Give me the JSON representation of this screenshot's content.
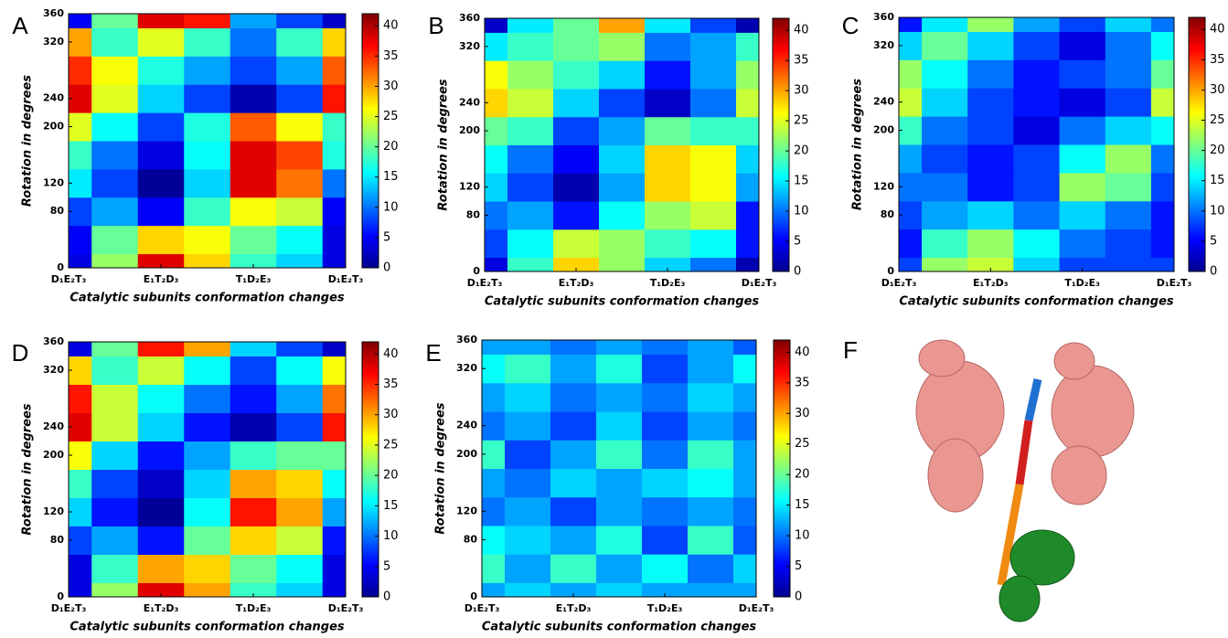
{
  "chart_data": [
    {
      "type": "contour",
      "label": "A",
      "xlabel": "Catalytic subunits conformation changes",
      "ylabel": "Rotation in degrees",
      "xticks": [
        {
          "value": 0,
          "label": "D₁E₂T₃"
        },
        {
          "value": 1,
          "label": "E₁T₂D₃"
        },
        {
          "value": 2,
          "label": "T₁D₂E₃"
        },
        {
          "value": 3,
          "label": "D₁E₂T₃"
        }
      ],
      "xlim": [
        0,
        3
      ],
      "ylim": [
        0,
        360
      ],
      "yticks": [
        0,
        80,
        120,
        200,
        240,
        320,
        360
      ],
      "zlim": [
        0,
        42
      ],
      "zticks": [
        0,
        5,
        10,
        15,
        20,
        25,
        30,
        35,
        40
      ],
      "x": [
        0,
        0.5,
        1,
        1.5,
        2,
        2.5,
        3
      ],
      "y": [
        0,
        40,
        80,
        120,
        160,
        200,
        240,
        280,
        320,
        360
      ],
      "z": [
        [
          4,
          22,
          38,
          28,
          18,
          14,
          4
        ],
        [
          5,
          20,
          28,
          26,
          20,
          16,
          4
        ],
        [
          8,
          12,
          5,
          18,
          26,
          24,
          5
        ],
        [
          15,
          8,
          1,
          14,
          38,
          32,
          10
        ],
        [
          18,
          10,
          4,
          16,
          38,
          34,
          17
        ],
        [
          25,
          16,
          8,
          17,
          33,
          26,
          18
        ],
        [
          38,
          25,
          14,
          8,
          2,
          8,
          36
        ],
        [
          35,
          26,
          17,
          12,
          8,
          12,
          33
        ],
        [
          30,
          18,
          25,
          18,
          10,
          18,
          28
        ],
        [
          5,
          20,
          38,
          36,
          12,
          8,
          3
        ]
      ]
    },
    {
      "type": "contour",
      "label": "B",
      "xlabel": "Catalytic subunits conformation changes",
      "ylabel": "Rotation in degrees",
      "xticks": [
        {
          "value": 0,
          "label": "D₁E₂T₃"
        },
        {
          "value": 1,
          "label": "E₁T₂D₃"
        },
        {
          "value": 2,
          "label": "T₁D₂E₃"
        },
        {
          "value": 3,
          "label": "D₁E₂T₃"
        }
      ],
      "xlim": [
        0,
        3
      ],
      "ylim": [
        0,
        360
      ],
      "yticks": [
        0,
        80,
        120,
        200,
        240,
        320,
        360
      ],
      "zlim": [
        0,
        42
      ],
      "zticks": [
        0,
        5,
        10,
        15,
        20,
        25,
        30,
        35,
        40
      ],
      "x": [
        0,
        0.5,
        1,
        1.5,
        2,
        2.5,
        3
      ],
      "y": [
        0,
        40,
        80,
        120,
        160,
        200,
        240,
        280,
        320,
        360
      ],
      "z": [
        [
          4,
          18,
          28,
          22,
          14,
          10,
          2
        ],
        [
          8,
          16,
          24,
          22,
          18,
          16,
          6
        ],
        [
          10,
          12,
          6,
          16,
          22,
          24,
          6
        ],
        [
          14,
          8,
          2,
          12,
          28,
          26,
          12
        ],
        [
          16,
          10,
          5,
          14,
          28,
          26,
          14
        ],
        [
          20,
          18,
          8,
          12,
          20,
          18,
          18
        ],
        [
          28,
          24,
          14,
          8,
          3,
          10,
          24
        ],
        [
          26,
          22,
          18,
          14,
          6,
          12,
          22
        ],
        [
          15,
          18,
          20,
          22,
          10,
          12,
          18
        ],
        [
          3,
          15,
          20,
          30,
          15,
          8,
          2
        ]
      ]
    },
    {
      "type": "contour",
      "label": "C",
      "xlabel": "Catalytic subunits conformation changes",
      "ylabel": "Rotation in degrees",
      "xticks": [
        {
          "value": 0,
          "label": "D₁E₂T₃"
        },
        {
          "value": 1,
          "label": "E₁T₂D₃"
        },
        {
          "value": 2,
          "label": "T₁D₂E₃"
        },
        {
          "value": 3,
          "label": "D₁E₂T₃"
        }
      ],
      "xlim": [
        0,
        3
      ],
      "ylim": [
        0,
        360
      ],
      "yticks": [
        0,
        80,
        120,
        200,
        240,
        320,
        360
      ],
      "zlim": [
        0,
        42
      ],
      "zticks": [
        0,
        5,
        10,
        15,
        20,
        25,
        30,
        35,
        40
      ],
      "x": [
        0,
        0.5,
        1,
        1.5,
        2,
        2.5,
        3
      ],
      "y": [
        0,
        40,
        80,
        120,
        160,
        200,
        240,
        280,
        320,
        360
      ],
      "z": [
        [
          8,
          22,
          24,
          14,
          8,
          8,
          8
        ],
        [
          6,
          18,
          22,
          16,
          10,
          8,
          6
        ],
        [
          8,
          12,
          14,
          10,
          14,
          10,
          6
        ],
        [
          10,
          10,
          6,
          8,
          22,
          20,
          8
        ],
        [
          12,
          8,
          6,
          8,
          16,
          22,
          10
        ],
        [
          18,
          10,
          8,
          4,
          10,
          14,
          16
        ],
        [
          24,
          14,
          8,
          6,
          4,
          8,
          24
        ],
        [
          22,
          16,
          10,
          6,
          8,
          10,
          20
        ],
        [
          14,
          20,
          14,
          8,
          4,
          10,
          16
        ],
        [
          6,
          15,
          22,
          12,
          8,
          14,
          10
        ]
      ]
    },
    {
      "type": "contour",
      "label": "D",
      "xlabel": "Catalytic subunits conformation changes",
      "ylabel": "Rotation in degrees",
      "xticks": [
        {
          "value": 0,
          "label": "D₁E₂T₃"
        },
        {
          "value": 1,
          "label": "E₁T₂D₃"
        },
        {
          "value": 2,
          "label": "T₁D₂E₃"
        },
        {
          "value": 3,
          "label": "D₁E₂T₃"
        }
      ],
      "xlim": [
        0,
        3
      ],
      "ylim": [
        0,
        360
      ],
      "yticks": [
        0,
        80,
        120,
        200,
        240,
        320,
        360
      ],
      "zlim": [
        0,
        42
      ],
      "zticks": [
        0,
        5,
        10,
        15,
        20,
        25,
        30,
        35,
        40
      ],
      "x": [
        0,
        0.5,
        1,
        1.5,
        2,
        2.5,
        3
      ],
      "y": [
        0,
        40,
        80,
        120,
        160,
        200,
        240,
        280,
        320,
        360
      ],
      "z": [
        [
          4,
          22,
          38,
          30,
          18,
          14,
          4
        ],
        [
          4,
          18,
          30,
          28,
          20,
          16,
          4
        ],
        [
          8,
          12,
          6,
          20,
          28,
          24,
          6
        ],
        [
          14,
          6,
          1,
          16,
          36,
          30,
          12
        ],
        [
          18,
          8,
          3,
          14,
          30,
          28,
          16
        ],
        [
          26,
          14,
          6,
          12,
          18,
          20,
          20
        ],
        [
          38,
          24,
          14,
          6,
          2,
          8,
          36
        ],
        [
          36,
          24,
          16,
          10,
          6,
          12,
          32
        ],
        [
          28,
          18,
          24,
          16,
          8,
          16,
          26
        ],
        [
          4,
          20,
          36,
          30,
          14,
          8,
          3
        ]
      ]
    },
    {
      "type": "contour",
      "label": "E",
      "xlabel": "Catalytic subunits conformation changes",
      "ylabel": "Rotation in degrees",
      "xticks": [
        {
          "value": 0,
          "label": "D₁E₂T₃"
        },
        {
          "value": 1,
          "label": "E₁T₂D₃"
        },
        {
          "value": 2,
          "label": "T₁D₂E₃"
        },
        {
          "value": 3,
          "label": "D₁E₂T₃"
        }
      ],
      "xlim": [
        0,
        3
      ],
      "ylim": [
        0,
        360
      ],
      "yticks": [
        0,
        80,
        120,
        200,
        240,
        320,
        360
      ],
      "zlim": [
        0,
        42
      ],
      "zticks": [
        0,
        5,
        10,
        15,
        20,
        25,
        30,
        35,
        40
      ],
      "x": [
        0,
        0.5,
        1,
        1.5,
        2,
        2.5,
        3
      ],
      "y": [
        0,
        40,
        80,
        120,
        160,
        200,
        240,
        280,
        320,
        360
      ],
      "z": [
        [
          12,
          14,
          12,
          14,
          12,
          12,
          12
        ],
        [
          18,
          12,
          18,
          12,
          16,
          10,
          14
        ],
        [
          16,
          14,
          12,
          17,
          8,
          18,
          9
        ],
        [
          10,
          12,
          8,
          12,
          10,
          12,
          10
        ],
        [
          12,
          10,
          14,
          12,
          14,
          16,
          12
        ],
        [
          18,
          8,
          12,
          18,
          10,
          18,
          12
        ],
        [
          10,
          12,
          8,
          14,
          8,
          12,
          10
        ],
        [
          12,
          14,
          10,
          12,
          10,
          14,
          12
        ],
        [
          16,
          18,
          12,
          17,
          8,
          12,
          16
        ],
        [
          12,
          12,
          10,
          12,
          10,
          12,
          9
        ]
      ]
    }
  ],
  "panel_f": {
    "label": "F"
  }
}
